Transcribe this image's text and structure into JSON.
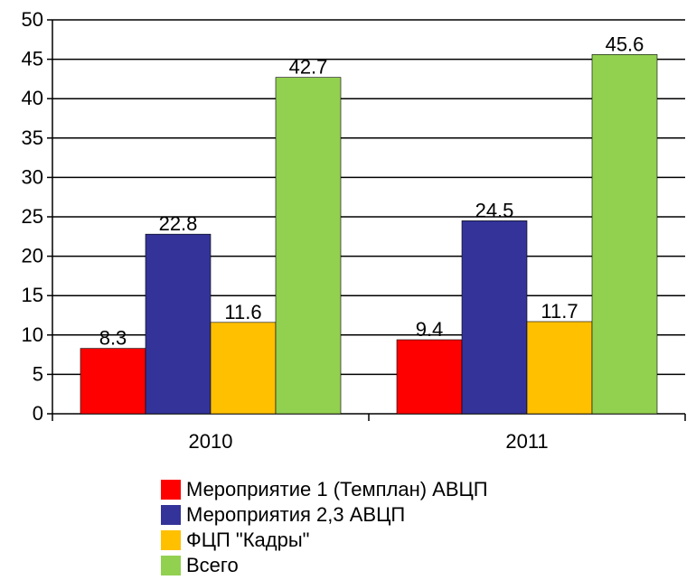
{
  "chart_data": {
    "type": "bar",
    "categories": [
      "2010",
      "2011"
    ],
    "series": [
      {
        "name": "Мероприятие 1 (Темплан) АВЦП",
        "values": [
          8.3,
          9.4
        ],
        "color": "#ff0000"
      },
      {
        "name": "Мероприятия 2,3 АВЦП",
        "values": [
          22.8,
          24.5
        ],
        "color": "#333399"
      },
      {
        "name": "ФЦП \"Кадры\"",
        "values": [
          11.6,
          11.7
        ],
        "color": "#ffc000"
      },
      {
        "name": "Всего",
        "values": [
          42.7,
          45.6
        ],
        "color": "#92d050"
      }
    ],
    "value_labels": [
      [
        "8.3",
        "9.4"
      ],
      [
        "22.8",
        "24.5"
      ],
      [
        "11.6",
        "11.7"
      ],
      [
        "42.7",
        "45.6"
      ]
    ],
    "yticks": [
      "0",
      "5",
      "10",
      "15",
      "20",
      "25",
      "30",
      "35",
      "40",
      "45",
      "50"
    ],
    "ylim": [
      0,
      50
    ],
    "grid": true,
    "legend_position": "bottom",
    "title": "",
    "xlabel": "",
    "ylabel": ""
  }
}
